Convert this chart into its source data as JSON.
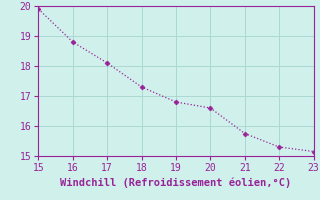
{
  "x": [
    15,
    16,
    17,
    18,
    19,
    20,
    21,
    22,
    23
  ],
  "y": [
    19.9,
    18.8,
    18.1,
    17.3,
    16.8,
    16.6,
    15.75,
    15.3,
    15.15
  ],
  "xlim": [
    15,
    23
  ],
  "ylim": [
    15,
    20
  ],
  "xticks": [
    15,
    16,
    17,
    18,
    19,
    20,
    21,
    22,
    23
  ],
  "yticks": [
    15,
    16,
    17,
    18,
    19,
    20
  ],
  "xlabel": "Windchill (Refroidissement éolien,°C)",
  "line_color": "#992299",
  "marker": "D",
  "marker_size": 2.5,
  "bg_color": "#cff0eb",
  "grid_color": "#aad8d3",
  "tick_color": "#992299",
  "label_color": "#992299",
  "font_size": 7,
  "xlabel_fontsize": 7.5
}
